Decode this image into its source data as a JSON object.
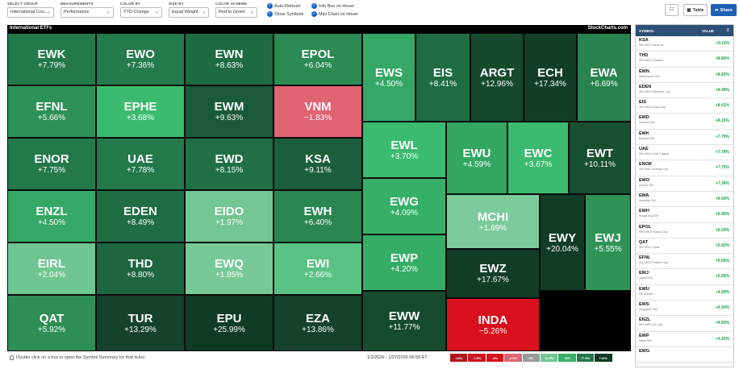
{
  "controls": {
    "select_group": {
      "label": "SELECT GROUP",
      "value": "International Cou..."
    },
    "measurements": {
      "label": "MEASUREMENTS",
      "value": "Performance"
    },
    "color_by": {
      "label": "COLOR BY",
      "value": "YTD Change"
    },
    "size_by": {
      "label": "SIZE BY",
      "value": "Equal Weight"
    },
    "color_scheme": {
      "label": "COLOR SCHEME",
      "value": "Red to Green"
    },
    "auto_refresh": "Auto-Refresh",
    "show_symbols": "Show Symbols",
    "info_box": "Info Box on Hover",
    "mini_chart": "Mini Chart on Hover",
    "table_label": "Table",
    "share_label": "Share"
  },
  "map": {
    "title": "International ETFs",
    "brand": "StockCharts.com"
  },
  "tiles": [
    {
      "symbol": "EWK",
      "change": "+7.79%",
      "color": "#23794a"
    },
    {
      "symbol": "EWO",
      "change": "+7.36%",
      "color": "#247b4b"
    },
    {
      "symbol": "EWN",
      "change": "+8.63%",
      "color": "#1e6b42"
    },
    {
      "symbol": "EPOL",
      "change": "+6.04%",
      "color": "#2c8b55"
    },
    {
      "symbol": "EFNL",
      "change": "+5.66%",
      "color": "#2e9157"
    },
    {
      "symbol": "EPHE",
      "change": "+3.68%",
      "color": "#3bbb6f"
    },
    {
      "symbol": "EWM",
      "change": "+9.63%",
      "color": "#1a5a38"
    },
    {
      "symbol": "VNM",
      "change": "−1.83%",
      "color": "#e06472"
    },
    {
      "symbol": "ENOR",
      "change": "+7.75%",
      "color": "#23794a"
    },
    {
      "symbol": "UAE",
      "change": "+7.78%",
      "color": "#23794a"
    },
    {
      "symbol": "EWD",
      "change": "+8.15%",
      "color": "#206f45"
    },
    {
      "symbol": "KSA",
      "change": "+9.11%",
      "color": "#1b5e3b"
    },
    {
      "symbol": "ENZL",
      "change": "+4.50%",
      "color": "#34a864"
    },
    {
      "symbol": "EDEN",
      "change": "+8.49%",
      "color": "#1f6d43"
    },
    {
      "symbol": "EIDO",
      "change": "+1.97%",
      "color": "#72c794"
    },
    {
      "symbol": "EWH",
      "change": "+6.40%",
      "color": "#2a8752"
    },
    {
      "symbol": "EIRL",
      "change": "+2.04%",
      "color": "#70c692"
    },
    {
      "symbol": "THD",
      "change": "+8.80%",
      "color": "#1d6640"
    },
    {
      "symbol": "EWQ",
      "change": "+1.85%",
      "color": "#77c998"
    },
    {
      "symbol": "EWI",
      "change": "+2.66%",
      "color": "#58c282"
    },
    {
      "symbol": "QAT",
      "change": "+5.92%",
      "color": "#2d8e56"
    },
    {
      "symbol": "TUR",
      "change": "+13.29%",
      "color": "#14422a"
    },
    {
      "symbol": "EPU",
      "change": "+25.99%",
      "color": "#0f3a24"
    },
    {
      "symbol": "EZA",
      "change": "+13.86%",
      "color": "#14422a"
    },
    {
      "symbol": "EWS",
      "change": "+4.50%",
      "color": "#34a864"
    },
    {
      "symbol": "EIS",
      "change": "+8.41%",
      "color": "#1f6d43"
    },
    {
      "symbol": "ARGT",
      "change": "+12.96%",
      "color": "#154a2e"
    },
    {
      "symbol": "ECH",
      "change": "+17.34%",
      "color": "#123e27"
    },
    {
      "symbol": "EWA",
      "change": "+6.69%",
      "color": "#29834f"
    },
    {
      "symbol": "EWL",
      "change": "+3.70%",
      "color": "#3bbb6f"
    },
    {
      "symbol": "EWU",
      "change": "+4.59%",
      "color": "#33a662"
    },
    {
      "symbol": "EWC",
      "change": "+3.67%",
      "color": "#3bbb6f"
    },
    {
      "symbol": "EWT",
      "change": "+10.11%",
      "color": "#174f31"
    },
    {
      "symbol": "EWG",
      "change": "+4.09%",
      "color": "#36b068"
    },
    {
      "symbol": "MCHI",
      "change": "+1.69%",
      "color": "#7bcb9c"
    },
    {
      "symbol": "EWY",
      "change": "+20.04%",
      "color": "#103b25"
    },
    {
      "symbol": "EWJ",
      "change": "+5.55%",
      "color": "#2f9358"
    },
    {
      "symbol": "EWP",
      "change": "+4.20%",
      "color": "#35ad66"
    },
    {
      "symbol": "EWZ",
      "change": "+17.67%",
      "color": "#123e27"
    },
    {
      "symbol": "EWW",
      "change": "+11.77%",
      "color": "#164b2f"
    },
    {
      "symbol": "INDA",
      "change": "−5.26%",
      "color": "#d9101e"
    }
  ],
  "panel": {
    "col_symbol": "SYMBOL",
    "col_value": "VALUE",
    "rows": [
      {
        "symbol": "KSA",
        "name": "iShr MSCI Saudi Ar",
        "value": "+9.11%"
      },
      {
        "symbol": "THD",
        "name": "iShr MSCI Thailand",
        "value": "+8.80%"
      },
      {
        "symbol": "EWN",
        "name": "Netherlands iShr",
        "value": "+8.63%"
      },
      {
        "symbol": "EDEN",
        "name": "iShr MSCI Denmark Cap",
        "value": "+8.49%"
      },
      {
        "symbol": "EIS",
        "name": "iShr MSCI Israel Cap",
        "value": "+8.41%"
      },
      {
        "symbol": "EWD",
        "name": "Sweden iShr",
        "value": "+8.15%"
      },
      {
        "symbol": "EWK",
        "name": "Belgium iShr",
        "value": "+7.79%"
      },
      {
        "symbol": "UAE",
        "name": "iShr MSCI UAE Capped",
        "value": "+7.78%"
      },
      {
        "symbol": "ENOR",
        "name": "iShr MSCI Norway Cap",
        "value": "+7.75%"
      },
      {
        "symbol": "EWO",
        "name": "Austria iShr",
        "value": "+7.36%"
      },
      {
        "symbol": "EWA",
        "name": "Australia iShr",
        "value": "+6.69%"
      },
      {
        "symbol": "EWH",
        "name": "HongKong iShr",
        "value": "+6.40%"
      },
      {
        "symbol": "EPOL",
        "name": "iShr MSCI Poland Cap",
        "value": "+6.04%"
      },
      {
        "symbol": "QAT",
        "name": "iShr MSCI Qatar",
        "value": "+5.92%"
      },
      {
        "symbol": "EFNL",
        "name": "iShr MSCI Finland Cap",
        "value": "+5.66%"
      },
      {
        "symbol": "EWJ",
        "name": "Japan iShr",
        "value": "+5.55%"
      },
      {
        "symbol": "EWU",
        "name": "UK iShares",
        "value": "+4.59%"
      },
      {
        "symbol": "EWS",
        "name": "Singapore iShr",
        "value": "+4.50%"
      },
      {
        "symbol": "ENZL",
        "name": "iShr MSCI NZ Cap",
        "value": "+4.50%"
      },
      {
        "symbol": "EWP",
        "name": "Spain iShr",
        "value": "+4.20%"
      },
      {
        "symbol": "EWG",
        "name": "",
        "value": ""
      }
    ]
  },
  "footer": {
    "hint": "Double click on a box to open the Symbol Summary for that ticker",
    "date_range": "1/2/2026 - 1/27/2026 05:59 ET",
    "legend": [
      {
        "label": "-10%",
        "color": "#b0141c"
      },
      {
        "label": "-7.5%",
        "color": "#c8151f"
      },
      {
        "label": "-5%",
        "color": "#d9101e"
      },
      {
        "label": "-2.5%",
        "color": "#e06472"
      },
      {
        "label": "0%",
        "color": "#9a9a9a"
      },
      {
        "label": "+2.5%",
        "color": "#72c794"
      },
      {
        "label": "+5%",
        "color": "#36b068"
      },
      {
        "label": "+7.5%",
        "color": "#23794a"
      },
      {
        "label": "+10%",
        "color": "#0f3a24"
      }
    ]
  }
}
